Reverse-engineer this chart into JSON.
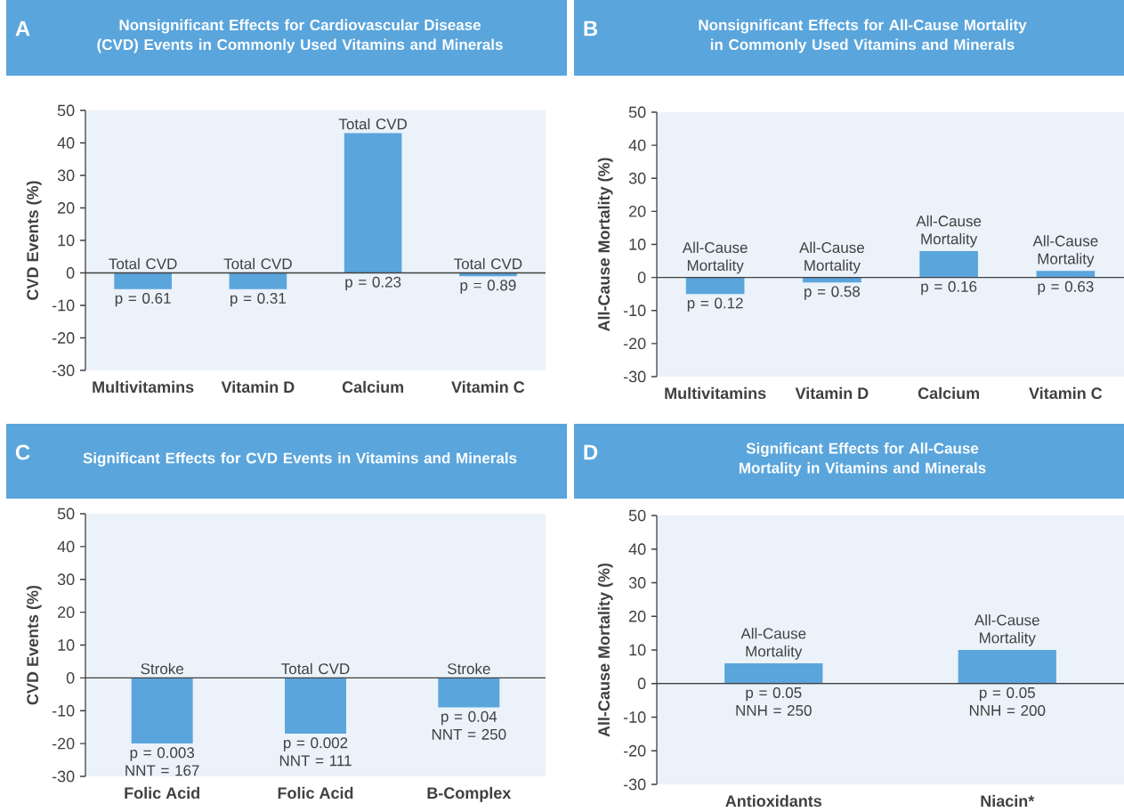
{
  "chart_data": [
    {
      "type": "bar",
      "title": "Nonsignificant Effects for Cardiovascular Disease (CVD) Events in Commonly Used Vitamins and Minerals",
      "ylabel": "CVD Events (%)",
      "categories": [
        "Multivitamins",
        "Vitamin D",
        "Calcium",
        "Vitamin C"
      ],
      "values": [
        -5,
        -5,
        43,
        -1
      ],
      "color": "#5aa5dc",
      "ylim": [
        -30,
        50
      ],
      "yticks": [
        -30,
        -20,
        -10,
        0,
        10,
        20,
        30,
        40,
        50
      ],
      "annotations": [
        "A",
        {
          "text": "Total CVD",
          "x": "Multivitamins",
          "y": 0
        },
        {
          "text": "p = 0.61",
          "x": "Multivitamins",
          "y": -5
        },
        {
          "text": "Total CVD",
          "x": "Vitamin D",
          "y": 0
        },
        {
          "text": "p = 0.31",
          "x": "Vitamin D",
          "y": -5
        },
        {
          "text": "Total CVD",
          "x": "Calcium",
          "y": 43
        },
        {
          "text": "p = 0.23",
          "x": "Calcium",
          "y": 0
        },
        {
          "text": "Total CVD",
          "x": "Vitamin C",
          "y": 0
        },
        {
          "text": "p = 0.89",
          "x": "Vitamin C",
          "y": -1
        }
      ]
    },
    {
      "type": "bar",
      "title": "Nonsignificant Effects for All-Cause Mortality in Commonly Used Vitamins and Minerals",
      "ylabel": "All-Cause Mortality (%)",
      "categories": [
        "Multivitamins",
        "Vitamin D",
        "Calcium",
        "Vitamin C"
      ],
      "values": [
        -5,
        -1.5,
        8,
        2
      ],
      "color": "#5aa5dc",
      "ylim": [
        -30,
        50
      ],
      "yticks": [
        -30,
        -20,
        -10,
        0,
        10,
        20,
        30,
        40,
        50
      ],
      "annotations": [
        "B",
        {
          "text": "All-Cause Mortality",
          "x": "Multivitamins",
          "y": 0
        },
        {
          "text": "p = 0.12",
          "x": "Multivitamins",
          "y": -5
        },
        {
          "text": "All-Cause Mortality",
          "x": "Vitamin D",
          "y": 0
        },
        {
          "text": "p = 0.58",
          "x": "Vitamin D",
          "y": -1.5
        },
        {
          "text": "All-Cause Mortality",
          "x": "Calcium",
          "y": 8
        },
        {
          "text": "p = 0.16",
          "x": "Calcium",
          "y": 0
        },
        {
          "text": "All-Cause Mortality",
          "x": "Vitamin C",
          "y": 2
        },
        {
          "text": "p = 0.63",
          "x": "Vitamin C",
          "y": 0
        }
      ]
    },
    {
      "type": "bar",
      "title": "Significant Effects for CVD Events in Vitamins and Minerals",
      "ylabel": "CVD Events (%)",
      "categories": [
        "Folic Acid",
        "Folic Acid",
        "B-Complex"
      ],
      "values": [
        -20,
        -17,
        -9
      ],
      "color": "#5aa5dc",
      "ylim": [
        -30,
        50
      ],
      "yticks": [
        -30,
        -20,
        -10,
        0,
        10,
        20,
        30,
        40,
        50
      ],
      "annotations": [
        "C",
        {
          "text": "Stroke",
          "x": "Folic Acid",
          "y": 0
        },
        {
          "text": "p = 0.003 NNT = 167",
          "x": "Folic Acid",
          "y": -20
        },
        {
          "text": "Total CVD",
          "y": 0
        },
        {
          "text": "p = 0.002 NNT = 111",
          "y": -17
        },
        {
          "text": "Stroke",
          "x": "B-Complex",
          "y": 0
        },
        {
          "text": "p = 0.04 NNT = 250",
          "x": "B-Complex",
          "y": -9
        }
      ]
    },
    {
      "type": "bar",
      "title": "Significant Effects for All-Cause Mortality in Vitamins and Minerals",
      "ylabel": "All-Cause Mortality (%)",
      "categories": [
        "Antioxidants",
        "Niacin*"
      ],
      "values": [
        6,
        10
      ],
      "color": "#5aa5dc",
      "ylim": [
        -30,
        50
      ],
      "yticks": [
        -30,
        -20,
        -10,
        0,
        10,
        20,
        30,
        40,
        50
      ],
      "annotations": [
        "D",
        {
          "text": "All-Cause Mortality",
          "x": "Antioxidants",
          "y": 6
        },
        {
          "text": "p = 0.05 NNH = 250",
          "x": "Antioxidants",
          "y": 0
        },
        {
          "text": "All-Cause Mortality",
          "x": "Niacin*",
          "y": 10
        },
        {
          "text": "p = 0.05 NNH = 200",
          "x": "Niacin*",
          "y": 0
        }
      ]
    }
  ]
}
